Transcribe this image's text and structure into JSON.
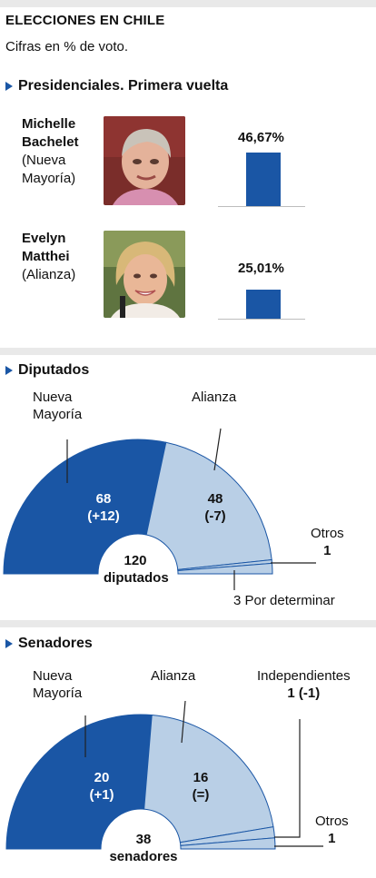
{
  "header": {
    "title": "ELECCIONES EN CHILE",
    "subtitle": "Cifras en % de voto."
  },
  "presidential": {
    "heading": "Presidenciales. Primera vuelta",
    "candidates": [
      {
        "first": "Michelle",
        "last": "Bachelet",
        "party_line1": "(Nueva",
        "party_line2": "Mayoría)",
        "pct_label": "46,67%"
      },
      {
        "first": "Evelyn",
        "last": "Matthei",
        "party_line1": "(Alianza)",
        "party_line2": "",
        "pct_label": "25,01%"
      }
    ]
  },
  "diputados": {
    "heading": "Diputados",
    "nm_line1": "Nueva",
    "nm_line2": "Mayoría",
    "alianza": "Alianza",
    "nm_value": "68",
    "nm_change": "(+12)",
    "al_value": "48",
    "al_change": "(-7)",
    "otros_label": "Otros",
    "otros_value": "1",
    "total": "120",
    "total_label": "diputados",
    "pending": "3 Por determinar"
  },
  "senadores": {
    "heading": "Senadores",
    "nm_line1": "Nueva",
    "nm_line2": "Mayoría",
    "alianza": "Alianza",
    "indep_label": "Independientes",
    "indep_value": "1 (-1)",
    "nm_value": "20",
    "nm_change": "(+1)",
    "al_value": "16",
    "al_change": "(=)",
    "otros_label": "Otros",
    "otros_value": "1",
    "total": "38",
    "total_label": "senadores"
  },
  "colors": {
    "nueva_mayoria": "#1a56a5",
    "alianza": "#b9cfe6",
    "separator": "#e9e9e9"
  },
  "chart_data": [
    {
      "type": "bar",
      "title": "Presidenciales. Primera vuelta",
      "categories": [
        "Michelle Bachelet",
        "Evelyn Matthei"
      ],
      "values": [
        46.67,
        25.01
      ],
      "ylim": [
        0,
        100
      ]
    },
    {
      "type": "pie",
      "title": "Diputados",
      "labels": [
        "Nueva Mayoría",
        "Alianza",
        "Otros",
        "Por determinar"
      ],
      "values": [
        68,
        48,
        1,
        3
      ],
      "total": 120
    },
    {
      "type": "pie",
      "title": "Senadores",
      "labels": [
        "Nueva Mayoría",
        "Alianza",
        "Independientes",
        "Otros"
      ],
      "values": [
        20,
        16,
        1,
        1
      ],
      "total": 38
    }
  ]
}
